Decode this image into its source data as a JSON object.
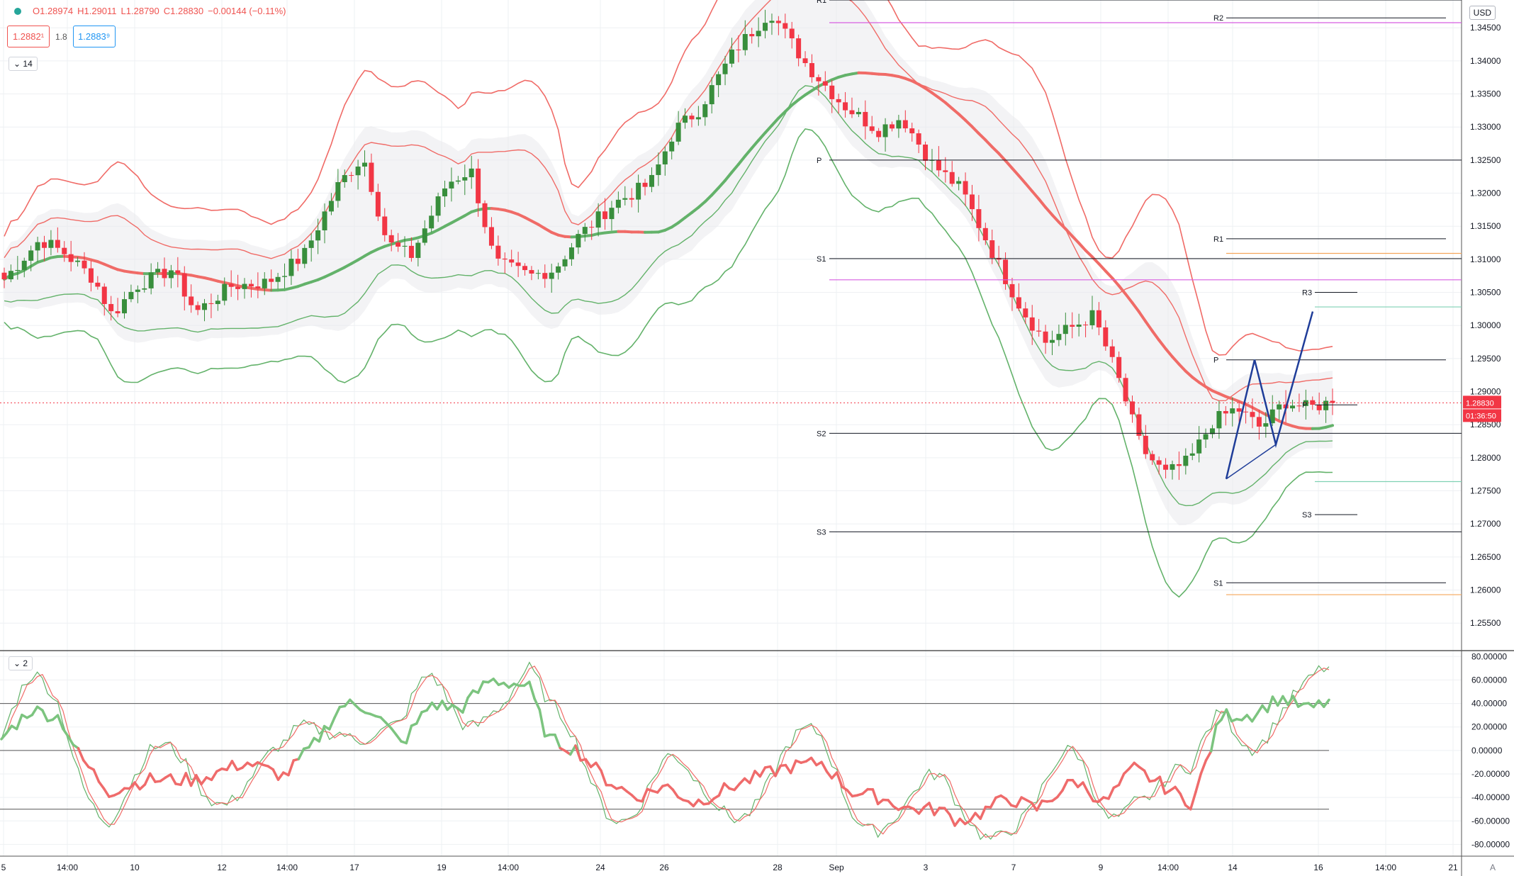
{
  "header": {
    "open": "O1.28974",
    "high": "H1.29011",
    "low": "L1.28790",
    "close": "C1.28830",
    "change": "−0.00144 (−0.11%)",
    "bid": "1.2882¹",
    "spread": "1.8",
    "ask": "1.2883⁹",
    "main_period": "14",
    "osc_period": "2",
    "currency": "USD",
    "axis_label_top": "1."
  },
  "price_axis": {
    "labels": [
      "1.34500",
      "1.34000",
      "1.33500",
      "1.33000",
      "1.32500",
      "1.32000",
      "1.31500",
      "1.31000",
      "1.30500",
      "1.30000",
      "1.29500",
      "1.29000",
      "1.28500",
      "1.28000",
      "1.27500",
      "1.27000",
      "1.26500",
      "1.26000",
      "1.25500"
    ],
    "current_price": "1.28830",
    "countdown": "01:36:50"
  },
  "osc_axis": {
    "labels": [
      "80.00000",
      "60.00000",
      "40.00000",
      "20.00000",
      "0.00000",
      "-20.00000",
      "-40.00000",
      "-60.00000",
      "-80.00000"
    ]
  },
  "time_axis": {
    "labels": [
      "5",
      "14:00",
      "10",
      "12",
      "14:00",
      "17",
      "19",
      "14:00",
      "24",
      "26",
      "28",
      "Sep",
      "3",
      "7",
      "9",
      "14:00",
      "14",
      "16",
      "14:00",
      "21"
    ],
    "corner": "A"
  },
  "pivot_labels": {
    "left_R1": "R1",
    "left_P": "P",
    "left_S1": "S1",
    "left_S2": "S2",
    "left_S3": "S3",
    "right_R2": "R2",
    "right_R1": "R1",
    "right_P": "P",
    "right_S1": "S1",
    "last_R3": "R3",
    "last_P": "P",
    "last_S3": "S3"
  },
  "colors": {
    "up": "#388e3c",
    "down": "#f23645",
    "upper": "#f06b67",
    "lower": "#63b26a",
    "pivot": "#131722",
    "magenta": "#d65ee0",
    "orange": "#f5a65b",
    "teal": "#7fd1b4",
    "pattern": "#1f3d99",
    "price_tag": "#f23645"
  },
  "chart_data": [
    {
      "type": "candlestick",
      "title": "",
      "ylim": [
        1.2517,
        1.3492
      ],
      "x_ticks": [
        "5",
        "14:00",
        "10",
        "12",
        "14:00",
        "17",
        "19",
        "14:00",
        "24",
        "26",
        "28",
        "Sep",
        "3",
        "7",
        "9",
        "14:00",
        "14",
        "16",
        "14:00",
        "21"
      ],
      "candle_count": 200,
      "anchors": [
        [
          0,
          1.307
        ],
        [
          6,
          1.313
        ],
        [
          10,
          1.311
        ],
        [
          15,
          1.307
        ],
        [
          18,
          1.3015
        ],
        [
          22,
          1.306
        ],
        [
          28,
          1.3085
        ],
        [
          32,
          1.302
        ],
        [
          38,
          1.306
        ],
        [
          44,
          1.3065
        ],
        [
          50,
          1.3105
        ],
        [
          56,
          1.3215
        ],
        [
          60,
          1.3255
        ],
        [
          64,
          1.3125
        ],
        [
          68,
          1.3105
        ],
        [
          74,
          1.3215
        ],
        [
          78,
          1.3235
        ],
        [
          82,
          1.3095
        ],
        [
          88,
          1.3075
        ],
        [
          92,
          1.3085
        ],
        [
          96,
          1.3135
        ],
        [
          102,
          1.3185
        ],
        [
          108,
          1.3215
        ],
        [
          112,
          1.3295
        ],
        [
          116,
          1.3325
        ],
        [
          122,
          1.3415
        ],
        [
          128,
          1.3475
        ],
        [
          134,
          1.3395
        ],
        [
          140,
          1.3335
        ],
        [
          146,
          1.3295
        ],
        [
          150,
          1.3315
        ],
        [
          155,
          1.3245
        ],
        [
          160,
          1.3205
        ],
        [
          166,
          1.3095
        ],
        [
          170,
          1.3025
        ],
        [
          174,
          1.2975
        ],
        [
          178,
          1.2995
        ],
        [
          182,
          1.3015
        ],
        [
          186,
          1.2925
        ],
        [
          190,
          1.2815
        ],
        [
          194,
          1.2775
        ],
        [
          198,
          1.2795
        ],
        [
          202,
          1.2855
        ],
        [
          206,
          1.2875
        ],
        [
          210,
          1.2845
        ],
        [
          214,
          1.2885
        ],
        [
          218,
          1.2875
        ],
        [
          222,
          1.2885
        ]
      ],
      "current_close": 1.2883,
      "pivot_lines": [
        {
          "label": "R1",
          "value": 1.3492
        },
        {
          "label": "P",
          "value": 1.325
        },
        {
          "label": "S1",
          "value": 1.3101
        },
        {
          "label": "S2",
          "value": 1.2837
        },
        {
          "label": "S3",
          "value": 1.2688
        },
        {
          "label": "R2",
          "value": 1.3465
        },
        {
          "label": "R1",
          "value": 1.3131
        },
        {
          "label": "P",
          "value": 1.2948
        },
        {
          "label": "S1",
          "value": 1.2611
        },
        {
          "label": "R3",
          "value": 1.305
        },
        {
          "label": "P",
          "value": 1.288
        },
        {
          "label": "S3",
          "value": 1.2714
        }
      ],
      "pattern_points": [
        [
          1.2768
        ],
        [
          1.2948
        ],
        [
          1.282
        ],
        [
          1.3021
        ]
      ]
    },
    {
      "type": "line",
      "title": "",
      "ylim": [
        -90,
        85
      ],
      "levels": [
        40,
        0,
        -50
      ],
      "series": [
        {
          "values_anchor": [
            [
              0,
              10
            ],
            [
              6,
              35
            ],
            [
              12,
              28
            ],
            [
              16,
              -5
            ],
            [
              22,
              -35
            ],
            [
              30,
              -25
            ],
            [
              40,
              -25
            ],
            [
              50,
              -10
            ],
            [
              58,
              -22
            ],
            [
              64,
              5
            ],
            [
              70,
              40
            ],
            [
              76,
              35
            ],
            [
              82,
              5
            ],
            [
              88,
              40
            ],
            [
              94,
              35
            ],
            [
              100,
              60
            ],
            [
              108,
              55
            ],
            [
              112,
              10
            ],
            [
              118,
              0
            ],
            [
              124,
              -25
            ],
            [
              130,
              -40
            ],
            [
              136,
              -30
            ],
            [
              142,
              -45
            ],
            [
              150,
              -30
            ],
            [
              160,
              -15
            ],
            [
              168,
              -10
            ],
            [
              174,
              -35
            ],
            [
              180,
              -40
            ],
            [
              186,
              -50
            ],
            [
              192,
              -50
            ],
            [
              196,
              -60
            ],
            [
              200,
              -55
            ],
            [
              206,
              -40
            ],
            [
              212,
              -50
            ],
            [
              220,
              -25
            ],
            [
              226,
              -45
            ],
            [
              232,
              -15
            ],
            [
              238,
              -30
            ],
            [
              244,
              -45
            ],
            [
              250,
              30
            ],
            [
              256,
              30
            ],
            [
              262,
              45
            ],
            [
              268,
              35
            ],
            [
              272,
              42
            ]
          ]
        }
      ]
    }
  ]
}
